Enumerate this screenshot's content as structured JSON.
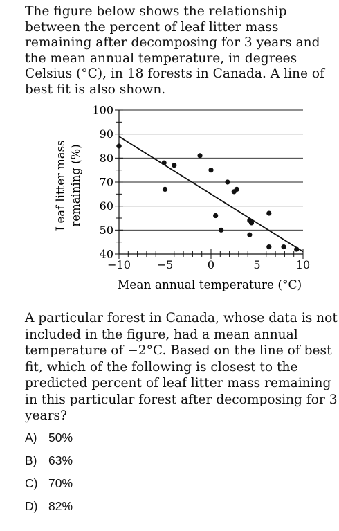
{
  "intro_text": "The figure below shows the relationship between the percent of leaf litter mass remaining after decomposing for 3 years and the mean annual temperature, in degrees Celsius (°C), in 18 forests in Canada. A line of best fit is also shown.",
  "question_text": "A particular forest in Canada, whose data is not included in the figure, had a mean annual temperature of −2°C. Based on the line of best fit, which of the following is closest to the predicted percent of leaf litter mass remaining in this particular forest after decomposing for 3 years?",
  "choices": [
    {
      "letter": "A)",
      "text": "50%"
    },
    {
      "letter": "B)",
      "text": "63%"
    },
    {
      "letter": "C)",
      "text": "70%"
    },
    {
      "letter": "D)",
      "text": "82%"
    }
  ],
  "chart_data": {
    "type": "scatter",
    "xlabel": "Mean annual temperature (°C)",
    "ylabel_line1": "Leaf litter mass",
    "ylabel_line2": "remaining (%)",
    "xlim": [
      -10,
      10
    ],
    "ylim": [
      40,
      100
    ],
    "x_ticks": [
      -10,
      -5,
      0,
      5,
      10
    ],
    "x_tick_labels": [
      "−10",
      "−5",
      "0",
      "5",
      "10"
    ],
    "y_ticks": [
      40,
      50,
      60,
      70,
      80,
      90,
      100
    ],
    "y_tick_labels": [
      "40",
      "50",
      "60",
      "70",
      "80",
      "90",
      "100"
    ],
    "grid": "horizontal",
    "points": [
      {
        "x": -10.0,
        "y": 85
      },
      {
        "x": -5.1,
        "y": 78
      },
      {
        "x": -4.0,
        "y": 77
      },
      {
        "x": -5.0,
        "y": 67
      },
      {
        "x": -1.2,
        "y": 81
      },
      {
        "x": 0.0,
        "y": 75
      },
      {
        "x": 1.8,
        "y": 70
      },
      {
        "x": 2.5,
        "y": 66
      },
      {
        "x": 2.8,
        "y": 67
      },
      {
        "x": 0.5,
        "y": 56
      },
      {
        "x": 1.1,
        "y": 50
      },
      {
        "x": 4.2,
        "y": 54
      },
      {
        "x": 4.4,
        "y": 53
      },
      {
        "x": 4.2,
        "y": 48
      },
      {
        "x": 6.3,
        "y": 57
      },
      {
        "x": 6.3,
        "y": 43
      },
      {
        "x": 7.9,
        "y": 43
      },
      {
        "x": 9.3,
        "y": 42
      }
    ],
    "best_fit": {
      "x": [
        -10,
        10
      ],
      "y": [
        89,
        41
      ]
    }
  }
}
